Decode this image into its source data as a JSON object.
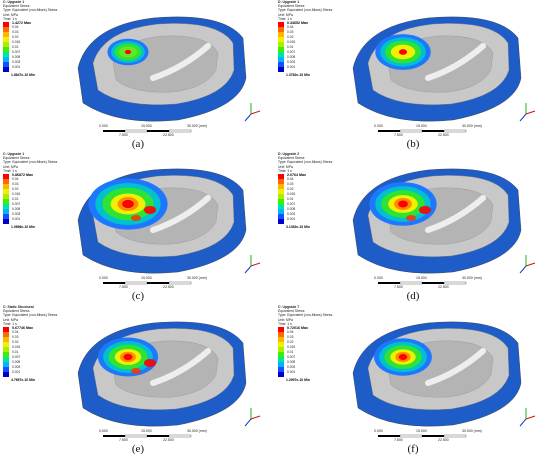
{
  "panels": [
    {
      "id": "a",
      "title": "C: Upgrade 1",
      "caption": "(a)",
      "max": "1.4272 Max",
      "min": "1.8647e-10 Min",
      "hot": 0.15
    },
    {
      "id": "b",
      "title": "D: Upgrade 1",
      "caption": "(b)",
      "max": "0.34652 Max",
      "min": "1.3782e-10 Min",
      "hot": 0.45
    },
    {
      "id": "c",
      "title": "C: Upgrade 1",
      "caption": "(c)",
      "max": "0.86872 Max",
      "min": "1.0896e-10 Min",
      "hot": 0.95
    },
    {
      "id": "d",
      "title": "D: Upgrade 2",
      "caption": "(d)",
      "max": "2.0764 Max",
      "min": "3.1392e-10 Min",
      "hot": 0.7
    },
    {
      "id": "e",
      "title": "C: Static Structural",
      "caption": "(e)",
      "max": "0.67746 Max",
      "min": "4.7657e-10 Min",
      "hot": 0.55
    },
    {
      "id": "f",
      "title": "C: Upgrade 7",
      "caption": "(f)",
      "max": "0.72016 Max",
      "min": "1.2997e-10 Min",
      "hot": 0.5
    }
  ],
  "legend_header": [
    "Equivalent Stress",
    "Type: Equivalent (von-Mises) Stress",
    "Unit: MPa",
    "Time: 1 s"
  ],
  "legend_levels": [
    "0.04",
    "0.03",
    "0.02",
    "0.015",
    "0.01",
    "0.007",
    "0.005",
    "0.003",
    "0.001"
  ],
  "legend_colors": [
    "#ff0000",
    "#ff6a00",
    "#ffb400",
    "#f0f000",
    "#a8f000",
    "#3cf000",
    "#00e6a0",
    "#00b4ff",
    "#1450ff",
    "#0000c8"
  ],
  "scale_labels": {
    "zero": "0.000",
    "mid1": "15.000",
    "end": "30.000 (mm)",
    "q1": "7.500",
    "q3": "22.500"
  },
  "colors": {
    "shell_gray": "#c8c8c8",
    "shell_blue": "#1e5cc8",
    "shell_dark": "#0a2a90"
  }
}
